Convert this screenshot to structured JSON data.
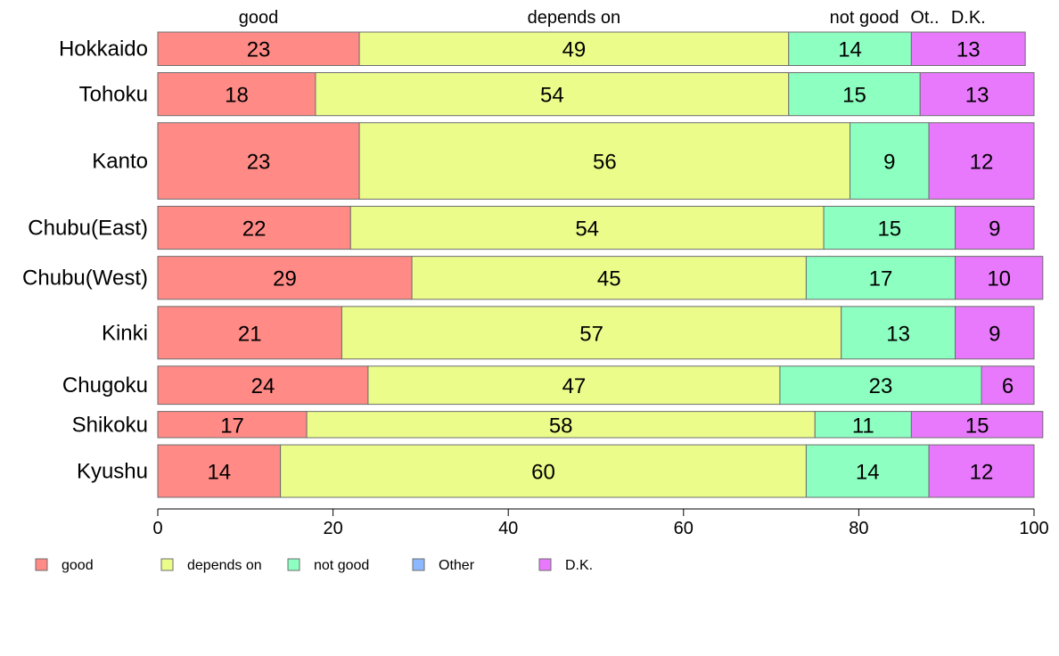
{
  "chart_data": {
    "type": "bar",
    "orientation": "horizontal",
    "stacked": true,
    "categories": [
      "Hokkaido",
      "Tohoku",
      "Kanto",
      "Chubu(East)",
      "Chubu(West)",
      "Kinki",
      "Chugoku",
      "Shikoku",
      "Kyushu"
    ],
    "relative_bar_thickness": [
      0.7,
      0.9,
      1.6,
      0.9,
      0.9,
      1.1,
      0.8,
      0.55,
      1.1
    ],
    "series": [
      {
        "name": "good",
        "color": "#FF8A86",
        "values": [
          23,
          18,
          23,
          22,
          29,
          21,
          24,
          17,
          14
        ]
      },
      {
        "name": "depends on",
        "color": "#EBFC8A",
        "values": [
          49,
          54,
          56,
          54,
          45,
          57,
          47,
          58,
          60
        ]
      },
      {
        "name": "not good",
        "color": "#8CFFC1",
        "values": [
          14,
          15,
          9,
          15,
          17,
          13,
          23,
          11,
          14
        ]
      },
      {
        "name": "Other",
        "color": "#8CB8FF",
        "values": [
          0,
          0,
          0,
          0,
          0,
          0,
          0,
          0,
          0
        ]
      },
      {
        "name": "D.K.",
        "color": "#E879FC",
        "values": [
          13,
          13,
          12,
          9,
          10,
          9,
          6,
          15,
          12
        ]
      }
    ],
    "top_labels": [
      "good",
      "depends on",
      "not good",
      "Ot..",
      "D.K."
    ],
    "xticks": [
      "0",
      "20",
      "40",
      "60",
      "80",
      "100"
    ],
    "xlim": [
      0,
      100
    ],
    "legend_position": "bottom",
    "grid": false
  }
}
